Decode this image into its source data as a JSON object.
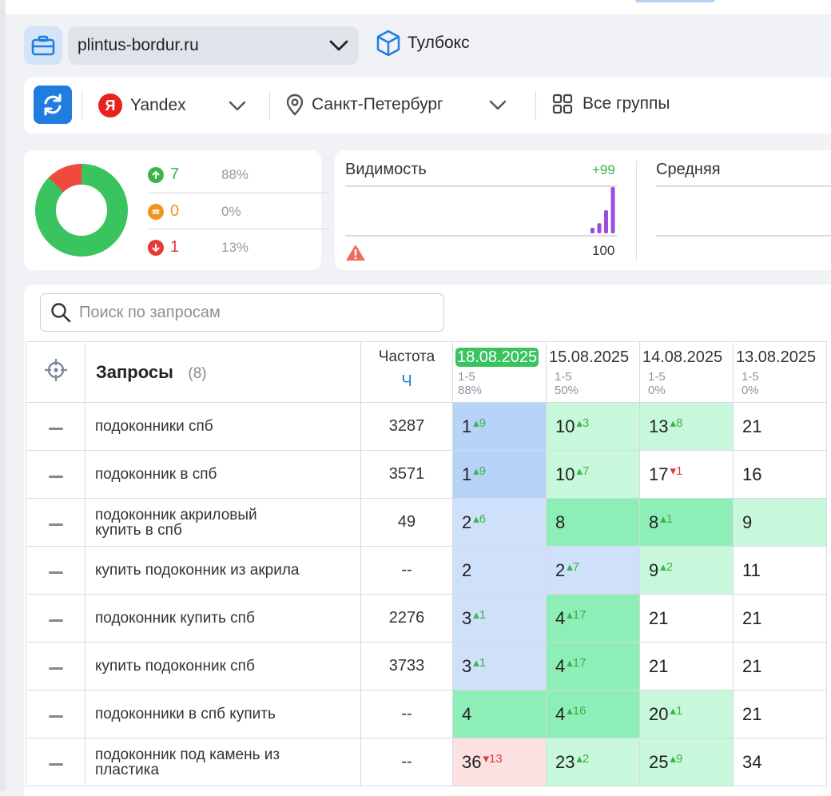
{
  "project": {
    "domain": "plintus-bordur.ru",
    "toolbox_label": "Тулбокс"
  },
  "filters": {
    "engine": "Yandex",
    "region": "Санкт-Петербург",
    "groups": "Все группы"
  },
  "summary": {
    "up": {
      "count": "7",
      "pct": "88%"
    },
    "same": {
      "count": "0",
      "pct": "0%"
    },
    "down": {
      "count": "1",
      "pct": "13%"
    },
    "donut": {
      "up_fraction": 0.875,
      "down_fraction": 0.125,
      "up_color": "#39c460",
      "down_color": "#f04a3f"
    }
  },
  "visibility": {
    "title": "Видимость",
    "delta": "+99",
    "value": "100",
    "bars": [
      0.12,
      0.22,
      0.5,
      1.0
    ],
    "bar_color": "#9b4de0"
  },
  "average": {
    "title": "Средняя"
  },
  "search": {
    "placeholder": "Поиск по запросам"
  },
  "table": {
    "queries_title": "Запросы",
    "queries_count": "(8)",
    "freq_title": "Частота",
    "freq_sub": "Ч",
    "dates": [
      {
        "date": "18.08.2025",
        "range": "1-5",
        "pct": "88%",
        "highlight": true
      },
      {
        "date": "15.08.2025",
        "range": "1-5",
        "pct": "50%",
        "highlight": false
      },
      {
        "date": "14.08.2025",
        "range": "1-5",
        "pct": "0%",
        "highlight": false
      },
      {
        "date": "13.08.2025",
        "range": "1-5",
        "pct": "0%",
        "highlight": false
      }
    ],
    "rows": [
      {
        "query": "подоконники спб",
        "freq": "3287",
        "cells": [
          {
            "pos": "1",
            "ch": "▴9",
            "dir": "up",
            "bg": "blue"
          },
          {
            "pos": "10",
            "ch": "▴3",
            "dir": "up",
            "bg": "lgreen"
          },
          {
            "pos": "13",
            "ch": "▴8",
            "dir": "up",
            "bg": "lgreen"
          },
          {
            "pos": "21",
            "ch": "",
            "dir": "",
            "bg": "w"
          }
        ]
      },
      {
        "query": "подоконник в спб",
        "freq": "3571",
        "cells": [
          {
            "pos": "1",
            "ch": "▴9",
            "dir": "up",
            "bg": "blue"
          },
          {
            "pos": "10",
            "ch": "▴7",
            "dir": "up",
            "bg": "lgreen"
          },
          {
            "pos": "17",
            "ch": "▾1",
            "dir": "dn",
            "bg": "w"
          },
          {
            "pos": "16",
            "ch": "",
            "dir": "",
            "bg": "w"
          }
        ]
      },
      {
        "query": "подоконник акриловый купить в спб",
        "freq": "49",
        "cells": [
          {
            "pos": "2",
            "ch": "▴6",
            "dir": "up",
            "bg": "lblue"
          },
          {
            "pos": "8",
            "ch": "",
            "dir": "",
            "bg": "green"
          },
          {
            "pos": "8",
            "ch": "▴1",
            "dir": "up",
            "bg": "green"
          },
          {
            "pos": "9",
            "ch": "",
            "dir": "",
            "bg": "lgreen"
          }
        ]
      },
      {
        "query": "купить подоконник из акрила",
        "freq": "--",
        "cells": [
          {
            "pos": "2",
            "ch": "",
            "dir": "",
            "bg": "lblue"
          },
          {
            "pos": "2",
            "ch": "▴7",
            "dir": "up",
            "bg": "lblue"
          },
          {
            "pos": "9",
            "ch": "▴2",
            "dir": "up",
            "bg": "lgreen"
          },
          {
            "pos": "11",
            "ch": "",
            "dir": "",
            "bg": "w"
          }
        ]
      },
      {
        "query": "подоконник купить спб",
        "freq": "2276",
        "cells": [
          {
            "pos": "3",
            "ch": "▴1",
            "dir": "up",
            "bg": "lblue"
          },
          {
            "pos": "4",
            "ch": "▴17",
            "dir": "up",
            "bg": "green"
          },
          {
            "pos": "21",
            "ch": "",
            "dir": "",
            "bg": "w"
          },
          {
            "pos": "21",
            "ch": "",
            "dir": "",
            "bg": "w"
          }
        ]
      },
      {
        "query": "купить подоконник спб",
        "freq": "3733",
        "cells": [
          {
            "pos": "3",
            "ch": "▴1",
            "dir": "up",
            "bg": "lblue"
          },
          {
            "pos": "4",
            "ch": "▴17",
            "dir": "up",
            "bg": "green"
          },
          {
            "pos": "21",
            "ch": "",
            "dir": "",
            "bg": "w"
          },
          {
            "pos": "21",
            "ch": "",
            "dir": "",
            "bg": "w"
          }
        ]
      },
      {
        "query": "подоконники в спб купить",
        "freq": "--",
        "cells": [
          {
            "pos": "4",
            "ch": "",
            "dir": "",
            "bg": "green"
          },
          {
            "pos": "4",
            "ch": "▴16",
            "dir": "up",
            "bg": "green"
          },
          {
            "pos": "20",
            "ch": "▴1",
            "dir": "up",
            "bg": "lgreen"
          },
          {
            "pos": "21",
            "ch": "",
            "dir": "",
            "bg": "w"
          }
        ]
      },
      {
        "query": "подоконник под камень из пластика",
        "freq": "--",
        "cells": [
          {
            "pos": "36",
            "ch": "▾13",
            "dir": "dn",
            "bg": "red"
          },
          {
            "pos": "23",
            "ch": "▴2",
            "dir": "up",
            "bg": "lgreen"
          },
          {
            "pos": "25",
            "ch": "▴9",
            "dir": "up",
            "bg": "lgreen"
          },
          {
            "pos": "34",
            "ch": "",
            "dir": "",
            "bg": "w"
          }
        ]
      }
    ]
  }
}
